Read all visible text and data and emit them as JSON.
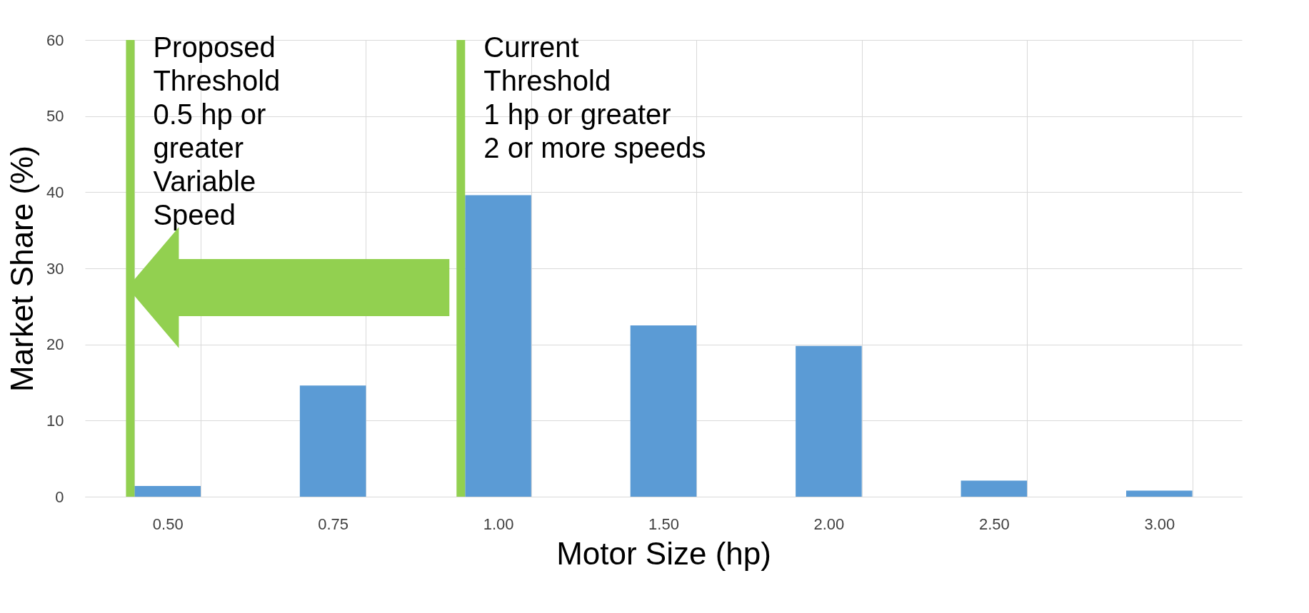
{
  "chart_data": {
    "type": "bar",
    "xlabel": "Motor Size (hp)",
    "ylabel": "Market Share (%)",
    "categories": [
      "0.50",
      "0.75",
      "1.00",
      "1.50",
      "2.00",
      "2.50",
      "3.00"
    ],
    "values": [
      1.4,
      14.6,
      39.6,
      22.5,
      19.8,
      2.1,
      0.8
    ],
    "color": "#5b9bd5",
    "ylim": [
      0,
      60
    ],
    "yticks": [
      0,
      10,
      20,
      30,
      40,
      50,
      60
    ],
    "grid": true,
    "ref_lines": [
      {
        "axis": "x",
        "value": "0.50",
        "label": "Proposed\nThreshold\n0.5 hp or\ngreater\nVariable\nSpeed",
        "color": "#92d050"
      },
      {
        "axis": "x",
        "value": "1.00",
        "label": "Current\nThreshold\n1 hp or greater\n2 or more speeds",
        "color": "#92d050"
      }
    ]
  }
}
